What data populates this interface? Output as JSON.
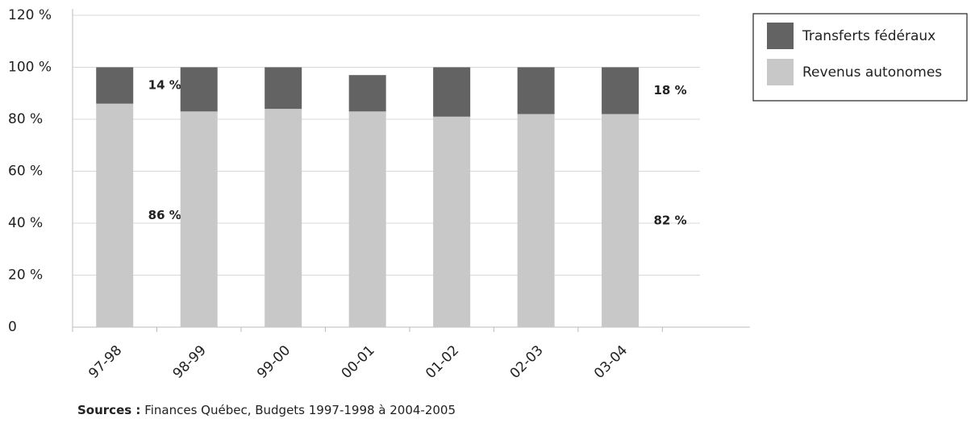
{
  "chart_data": {
    "type": "stacked-bar",
    "categories": [
      "97-98",
      "98-99",
      "99-00",
      "00-01",
      "01-02",
      "02-03",
      "03-04"
    ],
    "series": [
      {
        "name": "Revenus autonomes",
        "color": "#c8c8c8",
        "values": [
          86,
          83,
          84,
          83,
          81,
          82,
          82
        ],
        "value_labels": [
          "86 %",
          null,
          null,
          null,
          null,
          null,
          "82 %"
        ]
      },
      {
        "name": "Transferts fédéraux",
        "color": "#636363",
        "values": [
          14,
          17,
          16,
          14,
          19,
          18,
          18
        ],
        "value_labels": [
          "14 %",
          null,
          null,
          null,
          null,
          null,
          "18 %"
        ]
      }
    ],
    "ylim": [
      0,
      120
    ],
    "yticks": [
      0,
      {
        "value": 20,
        "label": "20 %"
      },
      {
        "value": 40,
        "label": "40 %"
      },
      {
        "value": 60,
        "label": "60 %"
      },
      {
        "value": 80,
        "label": "80 %"
      },
      {
        "value": 100,
        "label": "100 %"
      },
      {
        "value": 120,
        "label": "120 %"
      }
    ],
    "grid": true,
    "legend": "top-right",
    "source": {
      "label": "Sources :",
      "text": "Finances Québec, Budgets 1997-1998 à 2004-2005"
    }
  }
}
